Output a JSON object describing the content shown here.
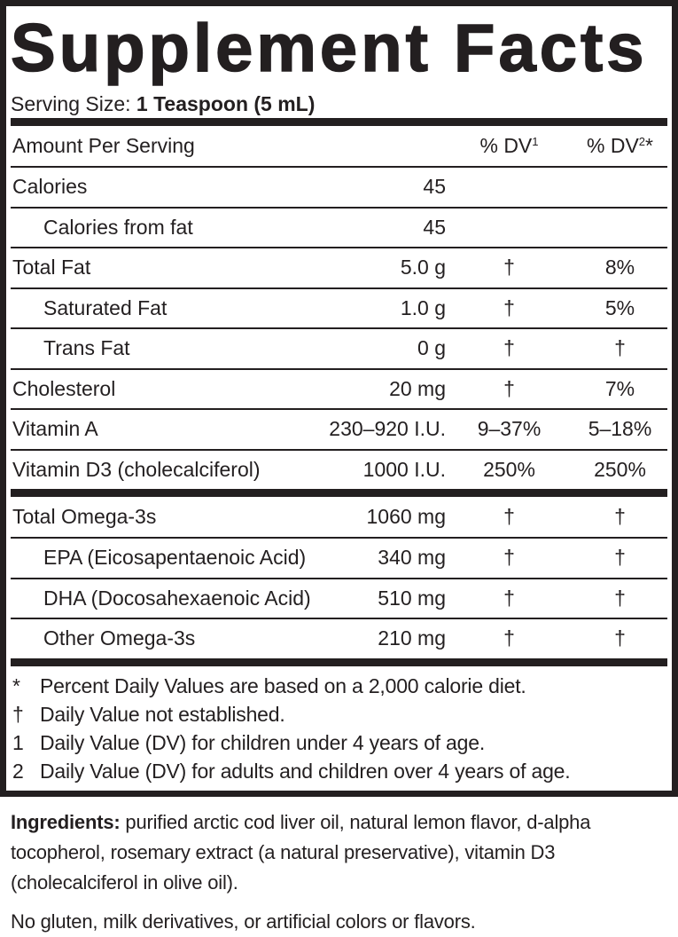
{
  "header": {
    "title": "Supplement Facts",
    "serving_label": "Serving Size:",
    "serving_value": "1 Teaspoon (5 mL)"
  },
  "table": {
    "columns": {
      "amount": "Amount Per Serving",
      "dv1": {
        "text": "% DV",
        "sup": "1"
      },
      "dv2": {
        "text": "% DV",
        "sup": "2",
        "mark": "*"
      }
    },
    "sections": [
      {
        "rows": [
          {
            "name": "Calories",
            "amount": "45"
          },
          {
            "name": "Calories from fat",
            "amount": "45",
            "indent": true
          },
          {
            "name": "Total Fat",
            "amount": "5.0 g",
            "dv1": "†",
            "dv2": "8%"
          },
          {
            "name": "Saturated Fat",
            "amount": "1.0 g",
            "dv1": "†",
            "dv2": "5%",
            "indent": true
          },
          {
            "name": "Trans Fat",
            "amount": "0 g",
            "dv1": "†",
            "dv2": "†",
            "indent": true
          },
          {
            "name": "Cholesterol",
            "amount": "20 mg",
            "dv1": "†",
            "dv2": "7%"
          },
          {
            "name": "Vitamin A",
            "amount": "230–920 I.U.",
            "dv1": "9–37%",
            "dv2": "5–18%"
          },
          {
            "name": "Vitamin D3 (cholecalciferol)",
            "amount": "1000 I.U.",
            "dv1": "250%",
            "dv2": "250%"
          }
        ]
      },
      {
        "rows": [
          {
            "name": "Total Omega-3s",
            "amount": "1060 mg",
            "dv1": "†",
            "dv2": "†"
          },
          {
            "name": "EPA (Eicosapentaenoic Acid)",
            "amount": "340 mg",
            "dv1": "†",
            "dv2": "†",
            "indent": true
          },
          {
            "name": "DHA (Docosahexaenoic Acid)",
            "amount": "510 mg",
            "dv1": "†",
            "dv2": "†",
            "indent": true
          },
          {
            "name": "Other Omega-3s",
            "amount": "210 mg",
            "dv1": "†",
            "dv2": "†",
            "indent": true
          }
        ]
      }
    ]
  },
  "footnotes": [
    {
      "symbol": "*",
      "text": "Percent Daily Values are based on a 2,000 calorie diet."
    },
    {
      "symbol": "†",
      "text": "Daily Value not established."
    },
    {
      "symbol": "1",
      "text": "Daily Value (DV) for children under 4 years of age."
    },
    {
      "symbol": "2",
      "text": "Daily Value (DV) for adults and children over 4 years of age."
    }
  ],
  "ingredients": {
    "label": "Ingredients:",
    "text": "purified arctic cod liver oil, natural lemon flavor, d-alpha tocopherol, rosemary extract (a natural preservative), vitamin D3 (cholecalciferol in olive oil).",
    "note": "No gluten, milk derivatives, or artificial colors or flavors."
  }
}
